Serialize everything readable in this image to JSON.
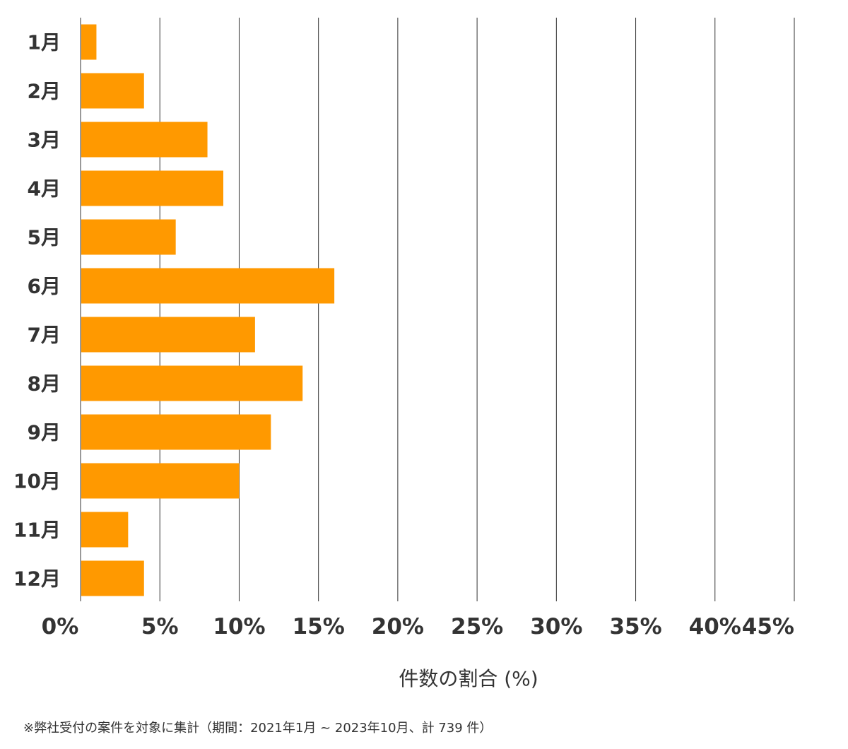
{
  "chart_data": {
    "type": "bar",
    "orientation": "horizontal",
    "categories": [
      "1月",
      "2月",
      "3月",
      "4月",
      "5月",
      "6月",
      "7月",
      "8月",
      "9月",
      "10月",
      "11月",
      "12月"
    ],
    "values": [
      1.0,
      4.0,
      8.0,
      9.0,
      6.0,
      16.0,
      11.0,
      14.0,
      12.0,
      10.0,
      3.0,
      4.0
    ],
    "xlim": [
      0,
      45
    ],
    "x_ticks": [
      0,
      5,
      10,
      15,
      20,
      25,
      30,
      35,
      40,
      45
    ],
    "x_tick_labels": [
      "0%",
      "5%",
      "10%",
      "15%",
      "20%",
      "25%",
      "30%",
      "35%",
      "40%",
      "45%"
    ],
    "xlabel": "件数の割合 (%)",
    "ylabel": "",
    "title": "",
    "grid": true,
    "bar_color": "#ff9900",
    "grid_color": "#333333",
    "footnote": "※弊社受付の案件を対象に集計（期間：2021年1月 ~ 2023年10月、計 739 件）"
  }
}
